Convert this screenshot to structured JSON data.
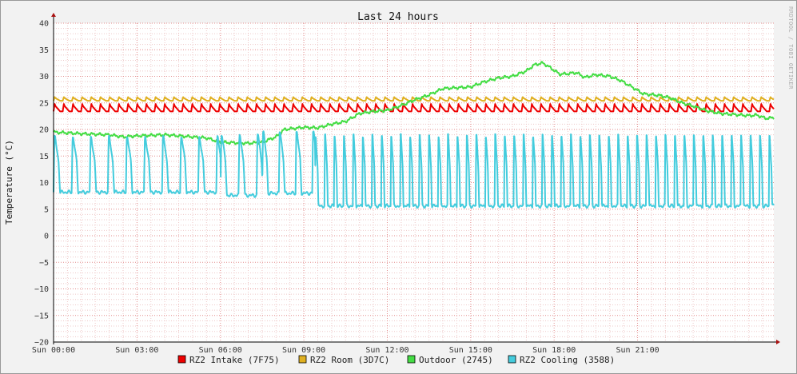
{
  "chart_data": {
    "type": "line",
    "title": "Last 24 hours",
    "ylabel": "Temperature (°C)",
    "xlabel": "",
    "ylim": [
      -20,
      40
    ],
    "yticks": [
      40,
      35,
      30,
      25,
      20,
      15,
      10,
      5,
      0,
      -5,
      -10,
      -15,
      -20
    ],
    "xlim": [
      0,
      25.9
    ],
    "xticks": [
      {
        "hour": 0,
        "label": "Sun 00:00"
      },
      {
        "hour": 3,
        "label": "Sun 03:00"
      },
      {
        "hour": 6,
        "label": "Sun 06:00"
      },
      {
        "hour": 9,
        "label": "Sun 09:00"
      },
      {
        "hour": 12,
        "label": "Sun 12:00"
      },
      {
        "hour": 15,
        "label": "Sun 15:00"
      },
      {
        "hour": 18,
        "label": "Sun 18:00"
      },
      {
        "hour": 21,
        "label": "Sun 21:00"
      }
    ],
    "grid": true,
    "legend_position": "bottom",
    "watermark": "RRDTOOL / TOBI OETIKER",
    "series": [
      {
        "name": "RZ2 Intake (7F75)",
        "color": "#ee0000",
        "pattern": "sawtooth",
        "base": 23.4,
        "peak": 24.8,
        "period_hours": 0.33
      },
      {
        "name": "RZ2 Room (3D7C)",
        "color": "#e0b020",
        "pattern": "sawtooth",
        "base": 25.4,
        "peak": 26.1,
        "period_hours": 0.33
      },
      {
        "name": "Outdoor (2745)",
        "color": "#44dd44",
        "pattern": "smooth",
        "points": [
          [
            0,
            19.5
          ],
          [
            1,
            19.2
          ],
          [
            2,
            19.0
          ],
          [
            2.5,
            18.6
          ],
          [
            3,
            18.8
          ],
          [
            4,
            19.0
          ],
          [
            5,
            18.6
          ],
          [
            5.5,
            18.4
          ],
          [
            6,
            17.6
          ],
          [
            7,
            17.4
          ],
          [
            7.5,
            17.6
          ],
          [
            8.0,
            18.6
          ],
          [
            8.3,
            20.0
          ],
          [
            9.0,
            20.4
          ],
          [
            9.5,
            20.3
          ],
          [
            10,
            21.0
          ],
          [
            10.5,
            21.5
          ],
          [
            11,
            23.0
          ],
          [
            11.5,
            23.4
          ],
          [
            12,
            23.6
          ],
          [
            12.5,
            24.5
          ],
          [
            13,
            25.6
          ],
          [
            13.5,
            26.5
          ],
          [
            14,
            27.7
          ],
          [
            15,
            28.0
          ],
          [
            15.5,
            29.0
          ],
          [
            16,
            29.7
          ],
          [
            16.5,
            30.0
          ],
          [
            17.0,
            31.0
          ],
          [
            17.3,
            32.2
          ],
          [
            17.6,
            32.5
          ],
          [
            17.9,
            31.5
          ],
          [
            18.2,
            30.4
          ],
          [
            18.5,
            30.5
          ],
          [
            18.8,
            30.7
          ],
          [
            19.1,
            29.8
          ],
          [
            19.5,
            30.3
          ],
          [
            20.0,
            30.0
          ],
          [
            20.4,
            29.2
          ],
          [
            20.8,
            28.0
          ],
          [
            21.2,
            26.7
          ],
          [
            21.8,
            26.4
          ],
          [
            22.2,
            25.9
          ],
          [
            22.6,
            25.0
          ],
          [
            23.0,
            24.4
          ],
          [
            23.5,
            23.5
          ],
          [
            24.0,
            23.0
          ],
          [
            24.5,
            22.8
          ],
          [
            25.0,
            22.6
          ],
          [
            25.3,
            22.7
          ],
          [
            25.6,
            22.1
          ],
          [
            25.9,
            22.2
          ]
        ]
      },
      {
        "name": "RZ2 Cooling (3588)",
        "color": "#44ccdd",
        "pattern": "spikes",
        "phases": [
          {
            "from": 0,
            "to": 6.0,
            "base": 8.2,
            "peak": 18.5,
            "period_hours": 0.65
          },
          {
            "from": 6.0,
            "to": 7.5,
            "base": 7.6,
            "peak": 19.0,
            "period_hours": 0.65
          },
          {
            "from": 7.5,
            "to": 9.4,
            "base": 8.0,
            "peak": 19.5,
            "period_hours": 0.6
          },
          {
            "from": 9.4,
            "to": 25.9,
            "base": 5.6,
            "peak": 18.8,
            "period_hours": 0.34
          }
        ]
      }
    ]
  }
}
